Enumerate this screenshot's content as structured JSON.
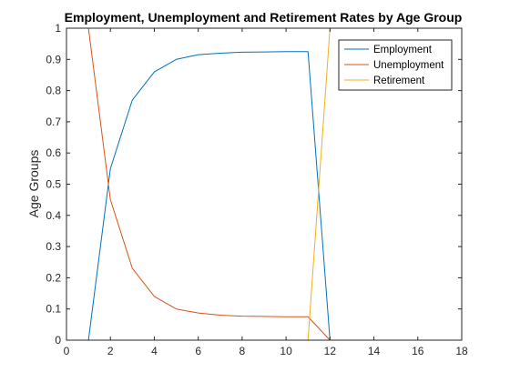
{
  "chart_data": {
    "type": "line",
    "title": "Employment, Unemployment and Retirement Rates by Age Group",
    "xlabel": "",
    "ylabel": "Age Groups",
    "xlim": [
      0,
      18
    ],
    "ylim": [
      0,
      1
    ],
    "xticks": [
      0,
      2,
      4,
      6,
      8,
      10,
      12,
      14,
      16,
      18
    ],
    "yticks": [
      0,
      0.1,
      0.2,
      0.3,
      0.4,
      0.5,
      0.6,
      0.7,
      0.8,
      0.9,
      1
    ],
    "x": [
      1,
      2,
      3,
      4,
      5,
      6,
      7,
      8,
      9,
      10,
      11,
      12,
      13,
      14,
      15,
      16,
      17,
      18
    ],
    "grid": false,
    "legend_position": "top-right",
    "series": [
      {
        "name": "Employment",
        "color": "#0072BD",
        "values": [
          0,
          0.55,
          0.77,
          0.86,
          0.9,
          0.915,
          0.92,
          0.923,
          0.924,
          0.925,
          0.925,
          0,
          0,
          0,
          0,
          0,
          0,
          0
        ]
      },
      {
        "name": "Unemployment",
        "color": "#D95319",
        "values": [
          1,
          0.45,
          0.23,
          0.14,
          0.1,
          0.087,
          0.08,
          0.077,
          0.076,
          0.075,
          0.075,
          0,
          0,
          0,
          0,
          0,
          0,
          0
        ]
      },
      {
        "name": "Retirement",
        "color": "#EDB120",
        "values": [
          0,
          0,
          0,
          0,
          0,
          0,
          0,
          0,
          0,
          0,
          0,
          1,
          1,
          1,
          1,
          1,
          1,
          1
        ]
      }
    ]
  }
}
